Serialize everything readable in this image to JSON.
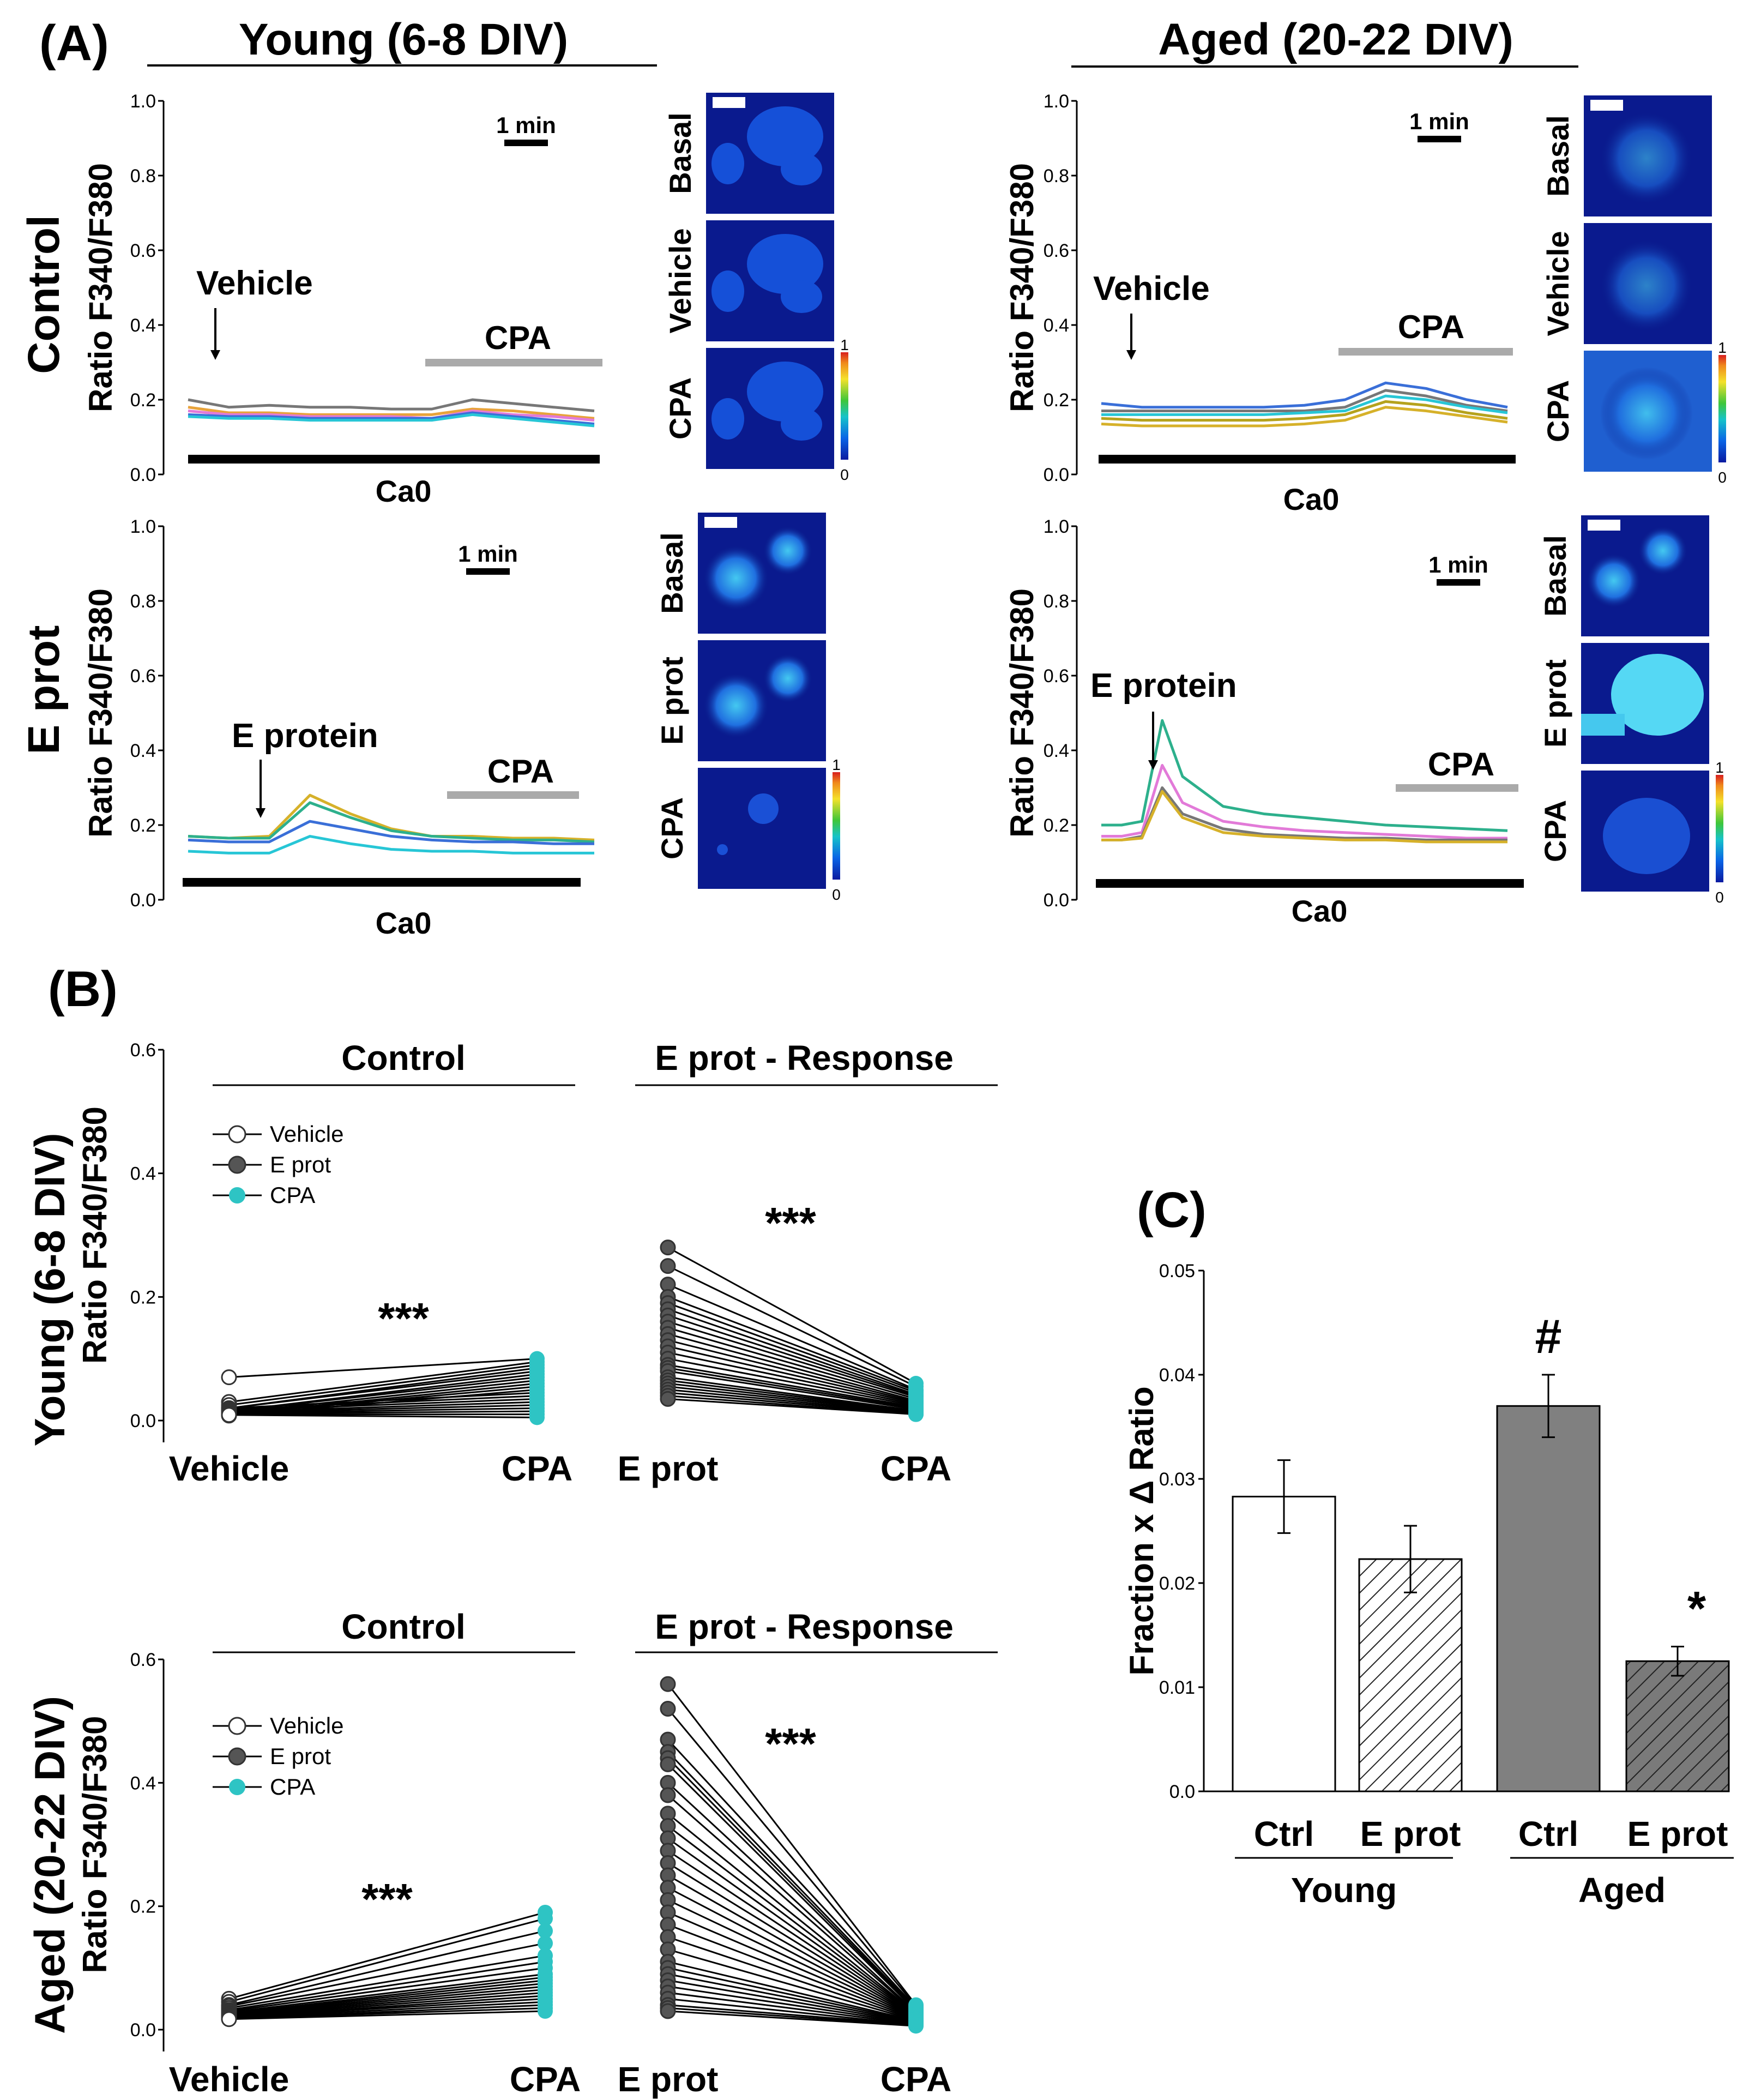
{
  "panel_letters": {
    "a": "(A)",
    "b": "(B)",
    "c": "(C)"
  },
  "headers": {
    "young": "Young (6-8 DIV)",
    "aged": "Aged (20-22 DIV)"
  },
  "row_labels": {
    "control": "Control",
    "eprot": "E prot"
  },
  "colorbar": {
    "max": "1",
    "min": "0"
  },
  "micro_labels": {
    "control": [
      "Basal",
      "Vehicle",
      "CPA"
    ],
    "eprot": [
      "Basal",
      "E prot",
      "CPA"
    ]
  },
  "colors": {
    "teal": "#2EC4C4",
    "gray_bar": "#808080",
    "trace_gray": "#777777",
    "trace_blue": "#3A6FD8",
    "trace_orange": "#E8A33A",
    "trace_pink": "#E27AD8",
    "trace_green": "#2DB08C",
    "trace_olive": "#B5A21D",
    "trace_cyan": "#27C6D6",
    "trace_yellow": "#D6B12A"
  },
  "chart_data": [
    {
      "id": "A1",
      "type": "line",
      "title": "Young (6-8 DIV) - Control",
      "ylabel": "Ratio F340/F380",
      "ylim": [
        0,
        1.0
      ],
      "yticks": [
        "0.0",
        "0.2",
        "0.4",
        "0.6",
        "0.8",
        "1.0"
      ],
      "scalebar": "1 min",
      "arrow_label": "Vehicle",
      "bar_label": "CPA",
      "baseline_label": "Ca0",
      "x": [
        0,
        1,
        2,
        3,
        4,
        5,
        6,
        7,
        8,
        9,
        10
      ],
      "series": [
        {
          "name": "trace1",
          "color": "#777777",
          "values": [
            0.2,
            0.18,
            0.185,
            0.18,
            0.18,
            0.175,
            0.175,
            0.2,
            0.19,
            0.18,
            0.17
          ]
        },
        {
          "name": "trace2",
          "color": "#E8A33A",
          "values": [
            0.18,
            0.165,
            0.165,
            0.16,
            0.16,
            0.16,
            0.16,
            0.175,
            0.17,
            0.16,
            0.15
          ]
        },
        {
          "name": "trace3",
          "color": "#E27AD8",
          "values": [
            0.17,
            0.16,
            0.16,
            0.155,
            0.155,
            0.155,
            0.15,
            0.17,
            0.16,
            0.155,
            0.145
          ]
        },
        {
          "name": "trace4",
          "color": "#3A6FD8",
          "values": [
            0.16,
            0.155,
            0.155,
            0.15,
            0.15,
            0.15,
            0.15,
            0.165,
            0.155,
            0.145,
            0.135
          ]
        },
        {
          "name": "trace5",
          "color": "#27C6D6",
          "values": [
            0.155,
            0.15,
            0.15,
            0.145,
            0.145,
            0.145,
            0.145,
            0.16,
            0.15,
            0.14,
            0.13
          ]
        }
      ]
    },
    {
      "id": "A2",
      "type": "line",
      "title": "Aged (20-22 DIV) - Control",
      "ylabel": "Ratio F340/F380",
      "ylim": [
        0,
        1.0
      ],
      "yticks": [
        "0.0",
        "0.2",
        "0.4",
        "0.6",
        "0.8",
        "1.0"
      ],
      "scalebar": "1 min",
      "arrow_label": "Vehicle",
      "bar_label": "CPA",
      "baseline_label": "Ca0",
      "x": [
        0,
        1,
        2,
        3,
        4,
        5,
        6,
        7,
        8,
        9,
        10
      ],
      "series": [
        {
          "name": "trace1",
          "color": "#3A6FD8",
          "values": [
            0.19,
            0.18,
            0.18,
            0.18,
            0.18,
            0.185,
            0.2,
            0.245,
            0.23,
            0.2,
            0.18
          ]
        },
        {
          "name": "trace2",
          "color": "#777777",
          "values": [
            0.17,
            0.17,
            0.17,
            0.17,
            0.17,
            0.17,
            0.18,
            0.225,
            0.21,
            0.185,
            0.17
          ]
        },
        {
          "name": "trace3",
          "color": "#27C6D6",
          "values": [
            0.16,
            0.16,
            0.16,
            0.16,
            0.16,
            0.165,
            0.17,
            0.21,
            0.2,
            0.18,
            0.165
          ]
        },
        {
          "name": "trace4",
          "color": "#B5A21D",
          "values": [
            0.15,
            0.145,
            0.145,
            0.145,
            0.145,
            0.15,
            0.16,
            0.195,
            0.185,
            0.165,
            0.15
          ]
        },
        {
          "name": "trace5",
          "color": "#D6B12A",
          "values": [
            0.135,
            0.13,
            0.13,
            0.13,
            0.13,
            0.135,
            0.145,
            0.18,
            0.17,
            0.155,
            0.14
          ]
        }
      ]
    },
    {
      "id": "A3",
      "type": "line",
      "title": "Young (6-8 DIV) - E prot",
      "ylabel": "Ratio F340/F380",
      "ylim": [
        0,
        1.0
      ],
      "yticks": [
        "0.0",
        "0.2",
        "0.4",
        "0.6",
        "0.8",
        "1.0"
      ],
      "scalebar": "1 min",
      "arrow_label": "E protein",
      "bar_label": "CPA",
      "baseline_label": "Ca0",
      "x": [
        0,
        1,
        2,
        3,
        4,
        5,
        6,
        7,
        8,
        9,
        10
      ],
      "series": [
        {
          "name": "trace1",
          "color": "#D6B12A",
          "values": [
            0.17,
            0.165,
            0.17,
            0.28,
            0.23,
            0.19,
            0.17,
            0.17,
            0.165,
            0.165,
            0.16
          ]
        },
        {
          "name": "trace2",
          "color": "#2DB08C",
          "values": [
            0.17,
            0.165,
            0.165,
            0.26,
            0.22,
            0.185,
            0.17,
            0.165,
            0.16,
            0.16,
            0.155
          ]
        },
        {
          "name": "trace3",
          "color": "#3A6FD8",
          "values": [
            0.16,
            0.155,
            0.155,
            0.21,
            0.19,
            0.17,
            0.16,
            0.155,
            0.155,
            0.15,
            0.15
          ]
        },
        {
          "name": "trace4",
          "color": "#27C6D6",
          "values": [
            0.13,
            0.125,
            0.125,
            0.17,
            0.15,
            0.135,
            0.13,
            0.13,
            0.125,
            0.125,
            0.125
          ]
        }
      ]
    },
    {
      "id": "A4",
      "type": "line",
      "title": "Aged (20-22 DIV) - E prot",
      "ylabel": "Ratio F340/F380",
      "ylim": [
        0,
        1.0
      ],
      "yticks": [
        "0.0",
        "0.2",
        "0.4",
        "0.6",
        "0.8",
        "1.0"
      ],
      "scalebar": "1 min",
      "arrow_label": "E protein",
      "bar_label": "CPA",
      "baseline_label": "Ca0",
      "x": [
        0,
        0.5,
        1,
        1.5,
        2,
        3,
        4,
        5,
        6,
        7,
        8,
        9,
        10
      ],
      "series": [
        {
          "name": "trace1",
          "color": "#2DB08C",
          "values": [
            0.2,
            0.2,
            0.21,
            0.48,
            0.33,
            0.25,
            0.23,
            0.22,
            0.21,
            0.2,
            0.195,
            0.19,
            0.185
          ]
        },
        {
          "name": "trace2",
          "color": "#E27AD8",
          "values": [
            0.17,
            0.17,
            0.18,
            0.36,
            0.26,
            0.21,
            0.195,
            0.185,
            0.18,
            0.175,
            0.17,
            0.165,
            0.165
          ]
        },
        {
          "name": "trace3",
          "color": "#777777",
          "values": [
            0.16,
            0.16,
            0.17,
            0.3,
            0.23,
            0.19,
            0.175,
            0.17,
            0.165,
            0.165,
            0.16,
            0.16,
            0.16
          ]
        },
        {
          "name": "trace4",
          "color": "#D6B12A",
          "values": [
            0.16,
            0.16,
            0.165,
            0.29,
            0.22,
            0.18,
            0.17,
            0.165,
            0.16,
            0.16,
            0.155,
            0.155,
            0.155
          ]
        }
      ]
    },
    {
      "id": "B1",
      "type": "scatter",
      "subtitle": "Young (6-8 DIV)",
      "title": "Control",
      "ylabel": "Ratio F340/F380",
      "ylim": [
        0,
        0.6
      ],
      "yticks": [
        "0.0",
        "0.2",
        "0.4",
        "0.6"
      ],
      "categories": [
        "Vehicle",
        "CPA"
      ],
      "significance": "***",
      "legend": [
        "Vehicle",
        "E prot",
        "CPA"
      ],
      "left": [
        0.07,
        0.03,
        0.025,
        0.02,
        0.02,
        0.015,
        0.015,
        0.012,
        0.01,
        0.01,
        0.008,
        0.02,
        0.018,
        0.016,
        0.014,
        0.013,
        0.012,
        0.011,
        0.01,
        0.009
      ],
      "right": [
        0.1,
        0.095,
        0.09,
        0.085,
        0.08,
        0.075,
        0.07,
        0.065,
        0.06,
        0.055,
        0.05,
        0.045,
        0.04,
        0.035,
        0.03,
        0.025,
        0.02,
        0.015,
        0.01,
        0.005
      ]
    },
    {
      "id": "B2",
      "type": "scatter",
      "subtitle": "Young (6-8 DIV)",
      "title": "E prot - Response",
      "ylabel": "Ratio F340/F380",
      "ylim": [
        0,
        0.6
      ],
      "yticks": [
        "0.0",
        "0.2",
        "0.4",
        "0.6"
      ],
      "categories": [
        "E prot",
        "CPA"
      ],
      "significance": "***",
      "left": [
        0.28,
        0.25,
        0.22,
        0.2,
        0.19,
        0.18,
        0.17,
        0.16,
        0.15,
        0.14,
        0.13,
        0.12,
        0.11,
        0.1,
        0.09,
        0.085,
        0.08,
        0.07,
        0.065,
        0.06,
        0.055,
        0.05,
        0.045,
        0.04,
        0.035
      ],
      "right": [
        0.06,
        0.055,
        0.05,
        0.048,
        0.045,
        0.042,
        0.04,
        0.038,
        0.035,
        0.032,
        0.03,
        0.028,
        0.026,
        0.024,
        0.022,
        0.02,
        0.018,
        0.016,
        0.015,
        0.014,
        0.013,
        0.012,
        0.011,
        0.01,
        0.01
      ]
    },
    {
      "id": "B3",
      "type": "scatter",
      "subtitle": "Aged (20-22 DIV)",
      "title": "Control",
      "ylabel": "Ratio F340/F380",
      "ylim": [
        0,
        0.6
      ],
      "yticks": [
        "0.0",
        "0.2",
        "0.4",
        "0.6"
      ],
      "categories": [
        "Vehicle",
        "CPA"
      ],
      "significance": "***",
      "legend": [
        "Vehicle",
        "E prot",
        "CPA"
      ],
      "left": [
        0.05,
        0.045,
        0.04,
        0.038,
        0.035,
        0.032,
        0.03,
        0.028,
        0.026,
        0.025,
        0.024,
        0.023,
        0.022,
        0.021,
        0.02,
        0.02,
        0.019,
        0.018,
        0.018,
        0.017
      ],
      "right": [
        0.19,
        0.18,
        0.16,
        0.14,
        0.12,
        0.11,
        0.1,
        0.09,
        0.085,
        0.08,
        0.075,
        0.07,
        0.065,
        0.06,
        0.055,
        0.05,
        0.045,
        0.04,
        0.035,
        0.03
      ]
    },
    {
      "id": "B4",
      "type": "scatter",
      "subtitle": "Aged (20-22 DIV)",
      "title": "E prot - Response",
      "ylabel": "Ratio F340/F380",
      "ylim": [
        0,
        0.6
      ],
      "yticks": [
        "0.0",
        "0.2",
        "0.4",
        "0.6"
      ],
      "categories": [
        "E prot",
        "CPA"
      ],
      "significance": "***",
      "left": [
        0.56,
        0.52,
        0.47,
        0.45,
        0.44,
        0.43,
        0.4,
        0.38,
        0.35,
        0.33,
        0.31,
        0.29,
        0.27,
        0.25,
        0.23,
        0.21,
        0.19,
        0.17,
        0.15,
        0.13,
        0.11,
        0.1,
        0.09,
        0.08,
        0.07,
        0.06,
        0.05,
        0.04,
        0.035,
        0.03
      ],
      "right": [
        0.04,
        0.038,
        0.036,
        0.034,
        0.032,
        0.03,
        0.028,
        0.027,
        0.026,
        0.025,
        0.024,
        0.023,
        0.022,
        0.021,
        0.02,
        0.019,
        0.018,
        0.017,
        0.016,
        0.015,
        0.014,
        0.013,
        0.012,
        0.011,
        0.01,
        0.009,
        0.008,
        0.008,
        0.007,
        0.006
      ]
    },
    {
      "id": "C",
      "type": "bar",
      "ylabel": "Fraction x Δ Ratio",
      "ylim": [
        0,
        0.05
      ],
      "yticks": [
        "0.0",
        "0.01",
        "0.02",
        "0.03",
        "0.04",
        "0.05"
      ],
      "categories": [
        "Ctrl",
        "E prot",
        "Ctrl",
        "E prot"
      ],
      "groups": [
        "Young",
        "Aged"
      ],
      "values": [
        0.0283,
        0.0223,
        0.037,
        0.0125
      ],
      "errors": [
        0.0035,
        0.0032,
        0.003,
        0.0014
      ],
      "fills": [
        "white",
        "hatch",
        "#808080",
        "hatch-gray"
      ],
      "annotations": [
        "",
        "",
        "#",
        "*"
      ]
    }
  ]
}
